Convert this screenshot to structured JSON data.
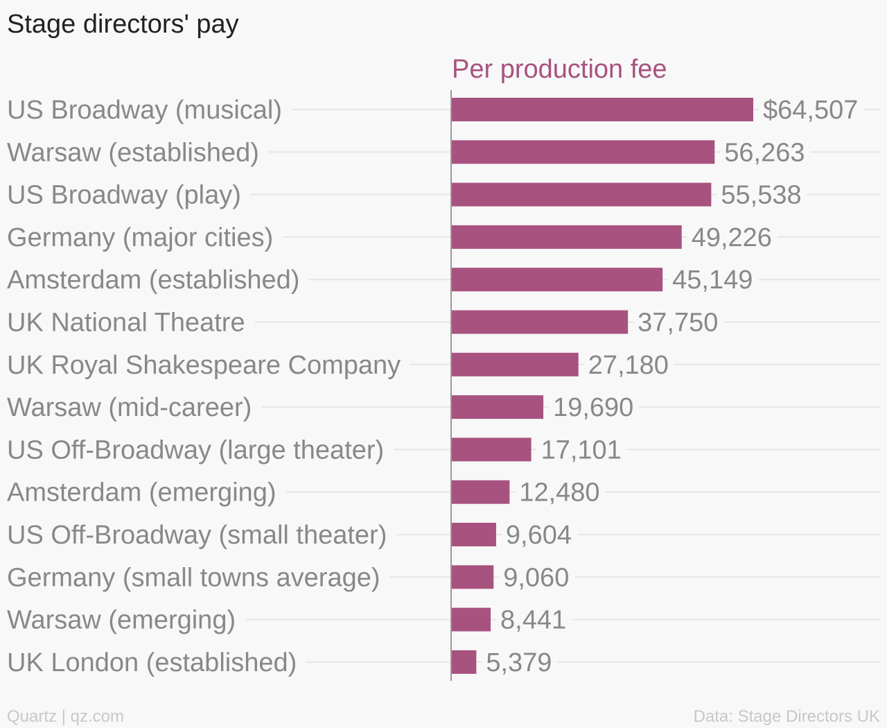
{
  "header": {
    "title": "Stage directors' pay"
  },
  "footer": {
    "source_left": "Quartz | qz.com",
    "source_right": "Data: Stage Directors UK"
  },
  "colors": {
    "bar": "#a8527f",
    "text": "#888888",
    "grid": "#e6e6e6",
    "axis": "#999999"
  },
  "chart_data": {
    "type": "bar",
    "orientation": "horizontal",
    "series_label": "Per production fee",
    "categories": [
      "US Broadway (musical)",
      "Warsaw (established)",
      "US Broadway (play)",
      "Germany (major cities)",
      "Amsterdam (established)",
      "UK National Theatre",
      "UK Royal Shakespeare Company",
      "Warsaw (mid-career)",
      "US Off-Broadway (large theater)",
      "Amsterdam (emerging)",
      "US Off-Broadway (small theater)",
      "Germany (small towns average)",
      "Warsaw (emerging)",
      "UK London (established)"
    ],
    "values": [
      64507,
      56263,
      55538,
      49226,
      45149,
      37750,
      27180,
      19690,
      17101,
      12480,
      9604,
      9060,
      8441,
      5379
    ],
    "value_labels": [
      "$64,507",
      "56,263",
      "55,538",
      "49,226",
      "45,149",
      "37,750",
      "27,180",
      "19,690",
      "17,101",
      "12,480",
      "9,604",
      "9,060",
      "8,441",
      "5,379"
    ],
    "xlim": [
      0,
      64507
    ],
    "grid": true
  }
}
